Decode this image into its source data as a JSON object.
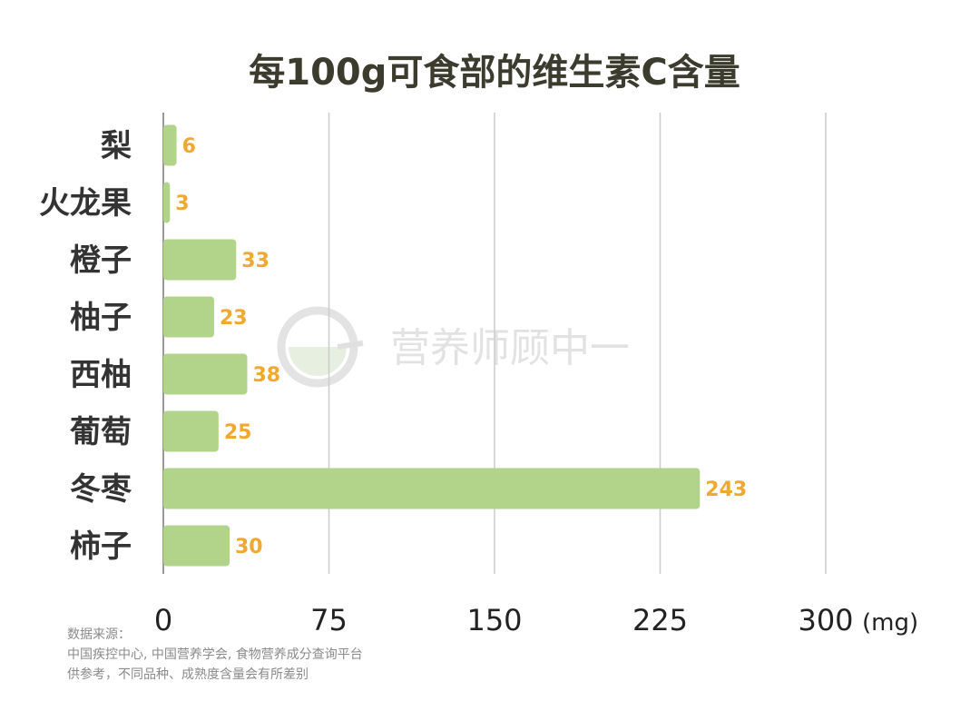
{
  "title": "每100g可食部的维生素C含量",
  "watermark": "营养师顾中一",
  "unit": "(mg)",
  "footnotes": {
    "line1": "数据来源：",
    "line2": "中国疾控中心, 中国营养学会, 食物营养成分查询平台",
    "line3": "供参考，不同品种、成熟度含量会有所差别"
  },
  "colors": {
    "bar": "#b2d48a",
    "value_label": "#f0a830",
    "title": "#3b3b2e"
  },
  "chart_data": {
    "type": "bar",
    "orientation": "horizontal",
    "title": "每100g可食部的维生素C含量",
    "categories": [
      "梨",
      "火龙果",
      "橙子",
      "柚子",
      "西柚",
      "葡萄",
      "冬枣",
      "柿子"
    ],
    "values": [
      6,
      3,
      33,
      23,
      38,
      25,
      243,
      30
    ],
    "xlim": [
      0,
      300
    ],
    "xticks": [
      "0",
      "75",
      "150",
      "225",
      "300"
    ],
    "xlabel": "(mg)",
    "ylabel": "",
    "grid": true,
    "data_labels": true
  }
}
